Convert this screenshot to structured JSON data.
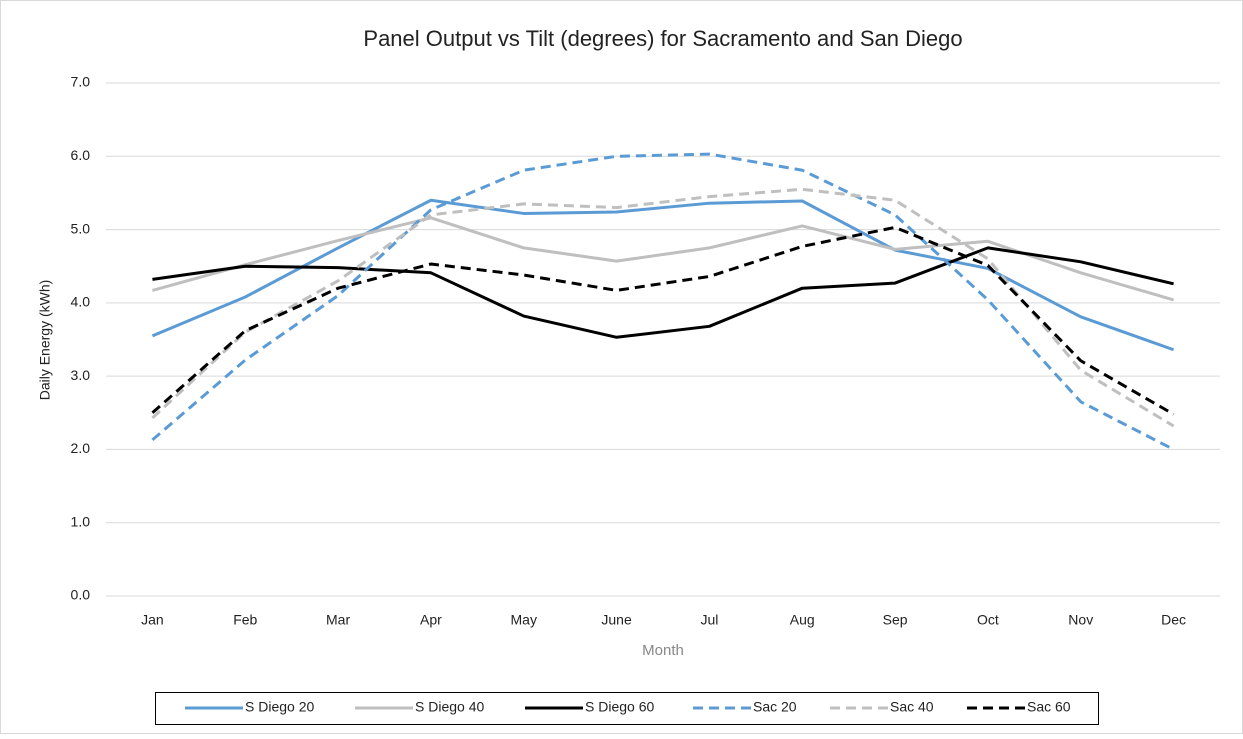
{
  "chart_data": {
    "type": "line",
    "title": "Panel Output vs Tilt (degrees) for Sacramento and San Diego",
    "xlabel": "Month",
    "ylabel": "Daily Energy (kWh)",
    "categories": [
      "Jan",
      "Feb",
      "Mar",
      "Apr",
      "May",
      "June",
      "Jul",
      "Aug",
      "Sep",
      "Oct",
      "Nov",
      "Dec"
    ],
    "ylim": [
      0,
      7
    ],
    "yticks": [
      {
        "value": 0,
        "label": "0.0"
      },
      {
        "value": 1,
        "label": "1.0"
      },
      {
        "value": 2,
        "label": "2.0"
      },
      {
        "value": 3,
        "label": "3.0"
      },
      {
        "value": 4,
        "label": "4.0"
      },
      {
        "value": 5,
        "label": "5.0"
      },
      {
        "value": 6,
        "label": "6.0"
      },
      {
        "value": 7,
        "label": "7.0"
      }
    ],
    "grid": true,
    "legend": "bottom",
    "series": [
      {
        "name": "S Diego 20",
        "color": "#5b9bd5",
        "dash": false,
        "values": [
          3.55,
          4.08,
          4.75,
          5.4,
          5.22,
          5.24,
          5.36,
          5.39,
          4.72,
          4.47,
          3.81,
          3.36
        ]
      },
      {
        "name": "S Diego 40",
        "color": "#bfbfbf",
        "dash": false,
        "values": [
          4.17,
          4.52,
          4.85,
          5.16,
          4.75,
          4.57,
          4.75,
          5.05,
          4.73,
          4.84,
          4.41,
          4.04
        ]
      },
      {
        "name": "S Diego 60",
        "color": "#000000",
        "dash": false,
        "values": [
          4.32,
          4.5,
          4.48,
          4.41,
          3.82,
          3.53,
          3.68,
          4.2,
          4.27,
          4.75,
          4.56,
          4.26
        ]
      },
      {
        "name": "Sac 20",
        "color": "#5b9bd5",
        "dash": true,
        "values": [
          2.13,
          3.22,
          4.1,
          5.27,
          5.81,
          6.0,
          6.03,
          5.81,
          5.2,
          4.04,
          2.65,
          2.0
        ]
      },
      {
        "name": "Sac 40",
        "color": "#bfbfbf",
        "dash": true,
        "values": [
          2.43,
          3.6,
          4.3,
          5.2,
          5.35,
          5.3,
          5.45,
          5.55,
          5.4,
          4.6,
          3.08,
          2.32
        ]
      },
      {
        "name": "Sac 60",
        "color": "#000000",
        "dash": true,
        "values": [
          2.5,
          3.62,
          4.2,
          4.53,
          4.38,
          4.17,
          4.36,
          4.77,
          5.03,
          4.51,
          3.21,
          2.48
        ]
      }
    ]
  }
}
